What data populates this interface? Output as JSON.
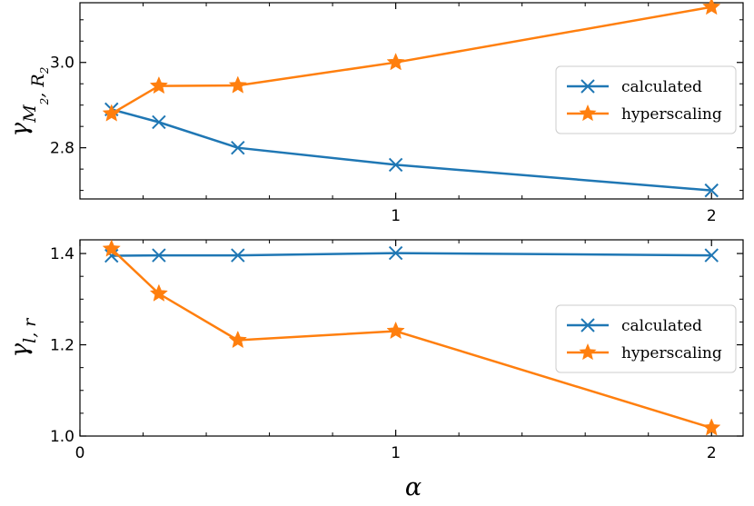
{
  "chart_data": [
    {
      "type": "line",
      "ylabel": "γ_{M2, R2}",
      "xlim": [
        0,
        2.1
      ],
      "ylim": [
        2.68,
        3.14
      ],
      "x": [
        0.1,
        0.25,
        0.5,
        1,
        2
      ],
      "xticks": [
        1,
        2
      ],
      "yticks": [
        2.8,
        3.0
      ],
      "xtick_labels": [
        "1",
        "2"
      ],
      "ytick_labels": [
        "2.8",
        "3.0"
      ],
      "legend_position": "center-right",
      "series": [
        {
          "name": "calculated",
          "color": "#1f77b4",
          "marker": "x",
          "values": [
            2.89,
            2.86,
            2.8,
            2.76,
            2.7
          ]
        },
        {
          "name": "hyperscaling",
          "color": "#ff7f0e",
          "marker": "star",
          "values": [
            2.88,
            2.945,
            2.946,
            3.0,
            3.13
          ]
        }
      ]
    },
    {
      "type": "line",
      "xlabel": "α",
      "ylabel": "γ_{l, r}",
      "xlim": [
        0,
        2.1
      ],
      "ylim": [
        1.0,
        1.43
      ],
      "x": [
        0.1,
        0.25,
        0.5,
        1,
        2
      ],
      "xticks": [
        0,
        1,
        2
      ],
      "yticks": [
        1.0,
        1.2,
        1.4
      ],
      "xtick_labels": [
        "0",
        "1",
        "2"
      ],
      "ytick_labels": [
        "1.0",
        "1.2",
        "1.4"
      ],
      "legend_position": "center-right",
      "series": [
        {
          "name": "calculated",
          "color": "#1f77b4",
          "marker": "x",
          "values": [
            1.395,
            1.396,
            1.396,
            1.401,
            1.396
          ]
        },
        {
          "name": "hyperscaling",
          "color": "#ff7f0e",
          "marker": "star",
          "values": [
            1.41,
            1.312,
            1.21,
            1.23,
            1.018
          ]
        }
      ]
    }
  ]
}
